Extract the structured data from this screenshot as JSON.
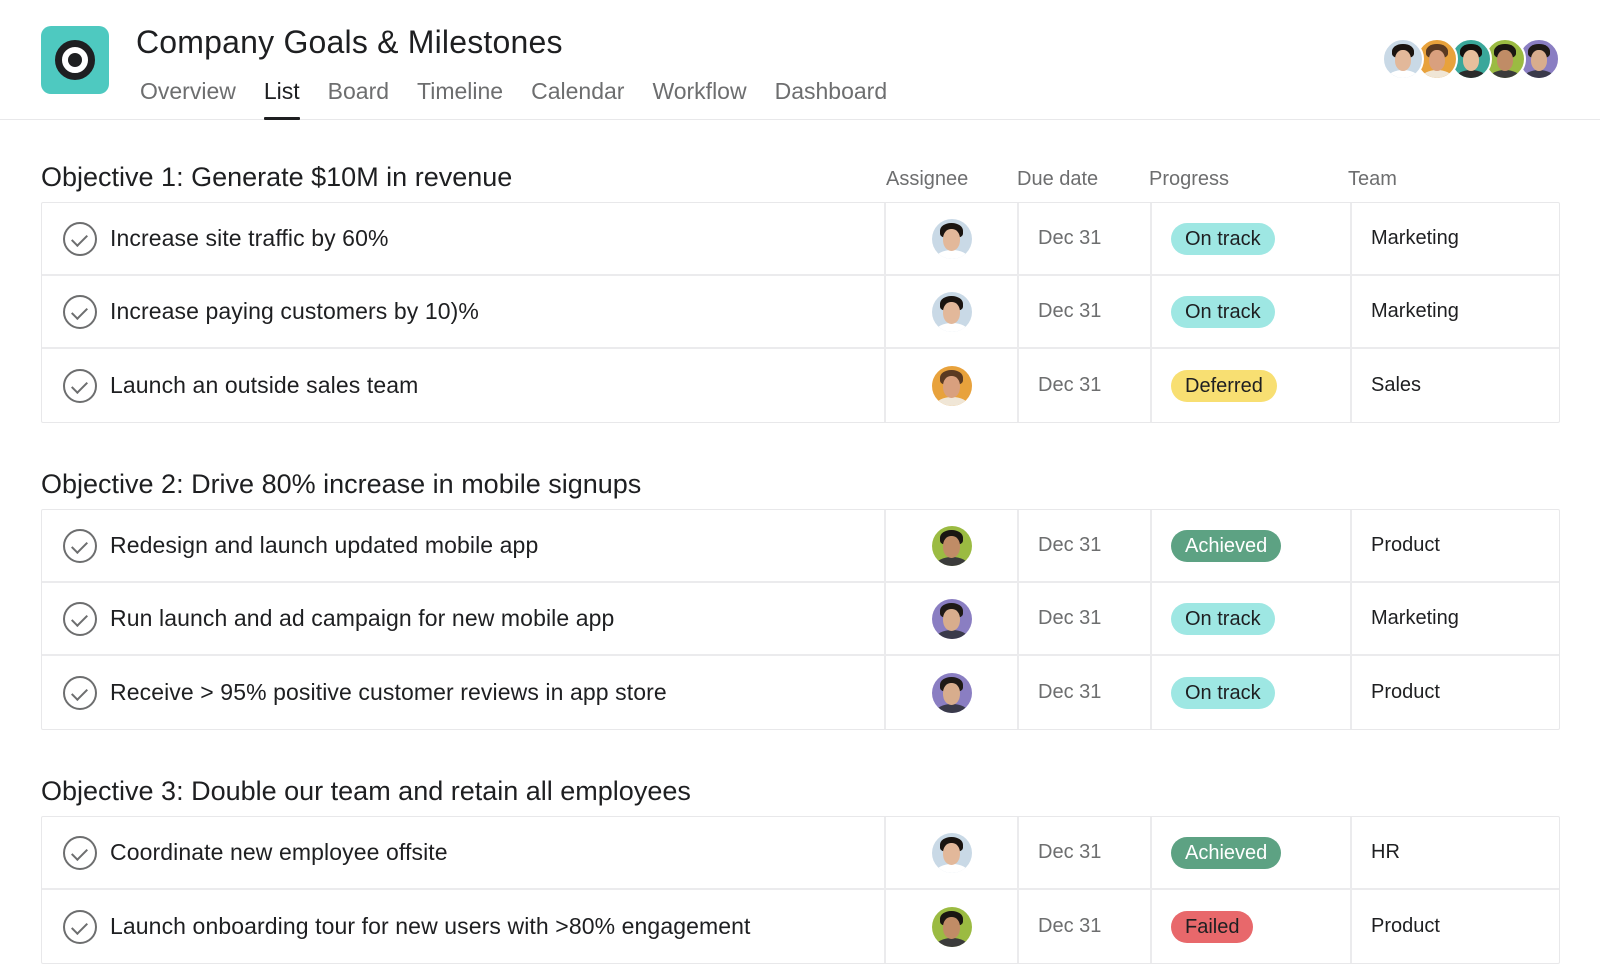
{
  "header": {
    "title": "Company Goals & Milestones",
    "tabs": [
      {
        "label": "Overview",
        "active": false
      },
      {
        "label": "List",
        "active": true
      },
      {
        "label": "Board",
        "active": false
      },
      {
        "label": "Timeline",
        "active": false
      },
      {
        "label": "Calendar",
        "active": false
      },
      {
        "label": "Workflow",
        "active": false
      },
      {
        "label": "Dashboard",
        "active": false
      }
    ],
    "icon": "target-icon",
    "accent_color": "#4ec9c0"
  },
  "members": [
    {
      "bg": "#c9d9e6",
      "skin": "#e2b89a",
      "hair": "#1a1410",
      "shirt": "#ffffff"
    },
    {
      "bg": "#e8a23c",
      "skin": "#d9a07e",
      "hair": "#5a3a22",
      "shirt": "#f0e6d6"
    },
    {
      "bg": "#3aa79a",
      "skin": "#e6bf9c",
      "hair": "#14110f",
      "shirt": "#2b2b2b"
    },
    {
      "bg": "#9bbb42",
      "skin": "#c08c66",
      "hair": "#1a1612",
      "shirt": "#3b3b3b"
    },
    {
      "bg": "#8a7ec2",
      "skin": "#d8ad8d",
      "hair": "#1f1a17",
      "shirt": "#3a3a4a"
    }
  ],
  "columns": {
    "assignee": "Assignee",
    "due_date": "Due date",
    "progress": "Progress",
    "team": "Team"
  },
  "objectives": [
    {
      "title": "Objective 1: Generate $10M in revenue",
      "tasks": [
        {
          "name": "Increase site traffic by 60%",
          "assignee": "a",
          "due": "Dec 31",
          "progress": "On track",
          "status": "on-track",
          "team": "Marketing"
        },
        {
          "name": "Increase paying customers by 10)%",
          "assignee": "a",
          "due": "Dec 31",
          "progress": "On track",
          "status": "on-track",
          "team": "Marketing"
        },
        {
          "name": "Launch an outside sales team",
          "assignee": "b",
          "due": "Dec 31",
          "progress": "Deferred",
          "status": "deferred",
          "team": "Sales"
        }
      ]
    },
    {
      "title": "Objective 2: Drive 80% increase in mobile signups",
      "tasks": [
        {
          "name": "Redesign and launch updated mobile app",
          "assignee": "d",
          "due": "Dec 31",
          "progress": "Achieved",
          "status": "achieved",
          "team": "Product"
        },
        {
          "name": "Run launch and ad campaign for new mobile app",
          "assignee": "e",
          "due": "Dec 31",
          "progress": "On track",
          "status": "on-track",
          "team": "Marketing"
        },
        {
          "name": "Receive > 95% positive customer reviews in app store",
          "assignee": "e",
          "due": "Dec 31",
          "progress": "On track",
          "status": "on-track",
          "team": "Product"
        }
      ]
    },
    {
      "title": "Objective 3: Double our team and retain all employees",
      "tasks": [
        {
          "name": "Coordinate new employee offsite",
          "assignee": "a",
          "due": "Dec 31",
          "progress": "Achieved",
          "status": "achieved",
          "team": "HR"
        },
        {
          "name": "Launch onboarding tour for new users with >80% engagement",
          "assignee": "d",
          "due": "Dec 31",
          "progress": "Failed",
          "status": "failed",
          "team": "Product"
        }
      ]
    }
  ],
  "avatar_styles": {
    "a": {
      "bg": "#c9d9e6",
      "skin": "#e2b89a",
      "hair": "#1a1410",
      "shirt": "#ffffff"
    },
    "b": {
      "bg": "#e8a23c",
      "skin": "#d9a07e",
      "hair": "#5a3a22",
      "shirt": "#f0e6d6"
    },
    "d": {
      "bg": "#9bbb42",
      "skin": "#c08c66",
      "hair": "#1a1612",
      "shirt": "#3b3b3b"
    },
    "e": {
      "bg": "#8a7ec2",
      "skin": "#d8ad8d",
      "hair": "#1f1a17",
      "shirt": "#3a3a4a"
    }
  }
}
